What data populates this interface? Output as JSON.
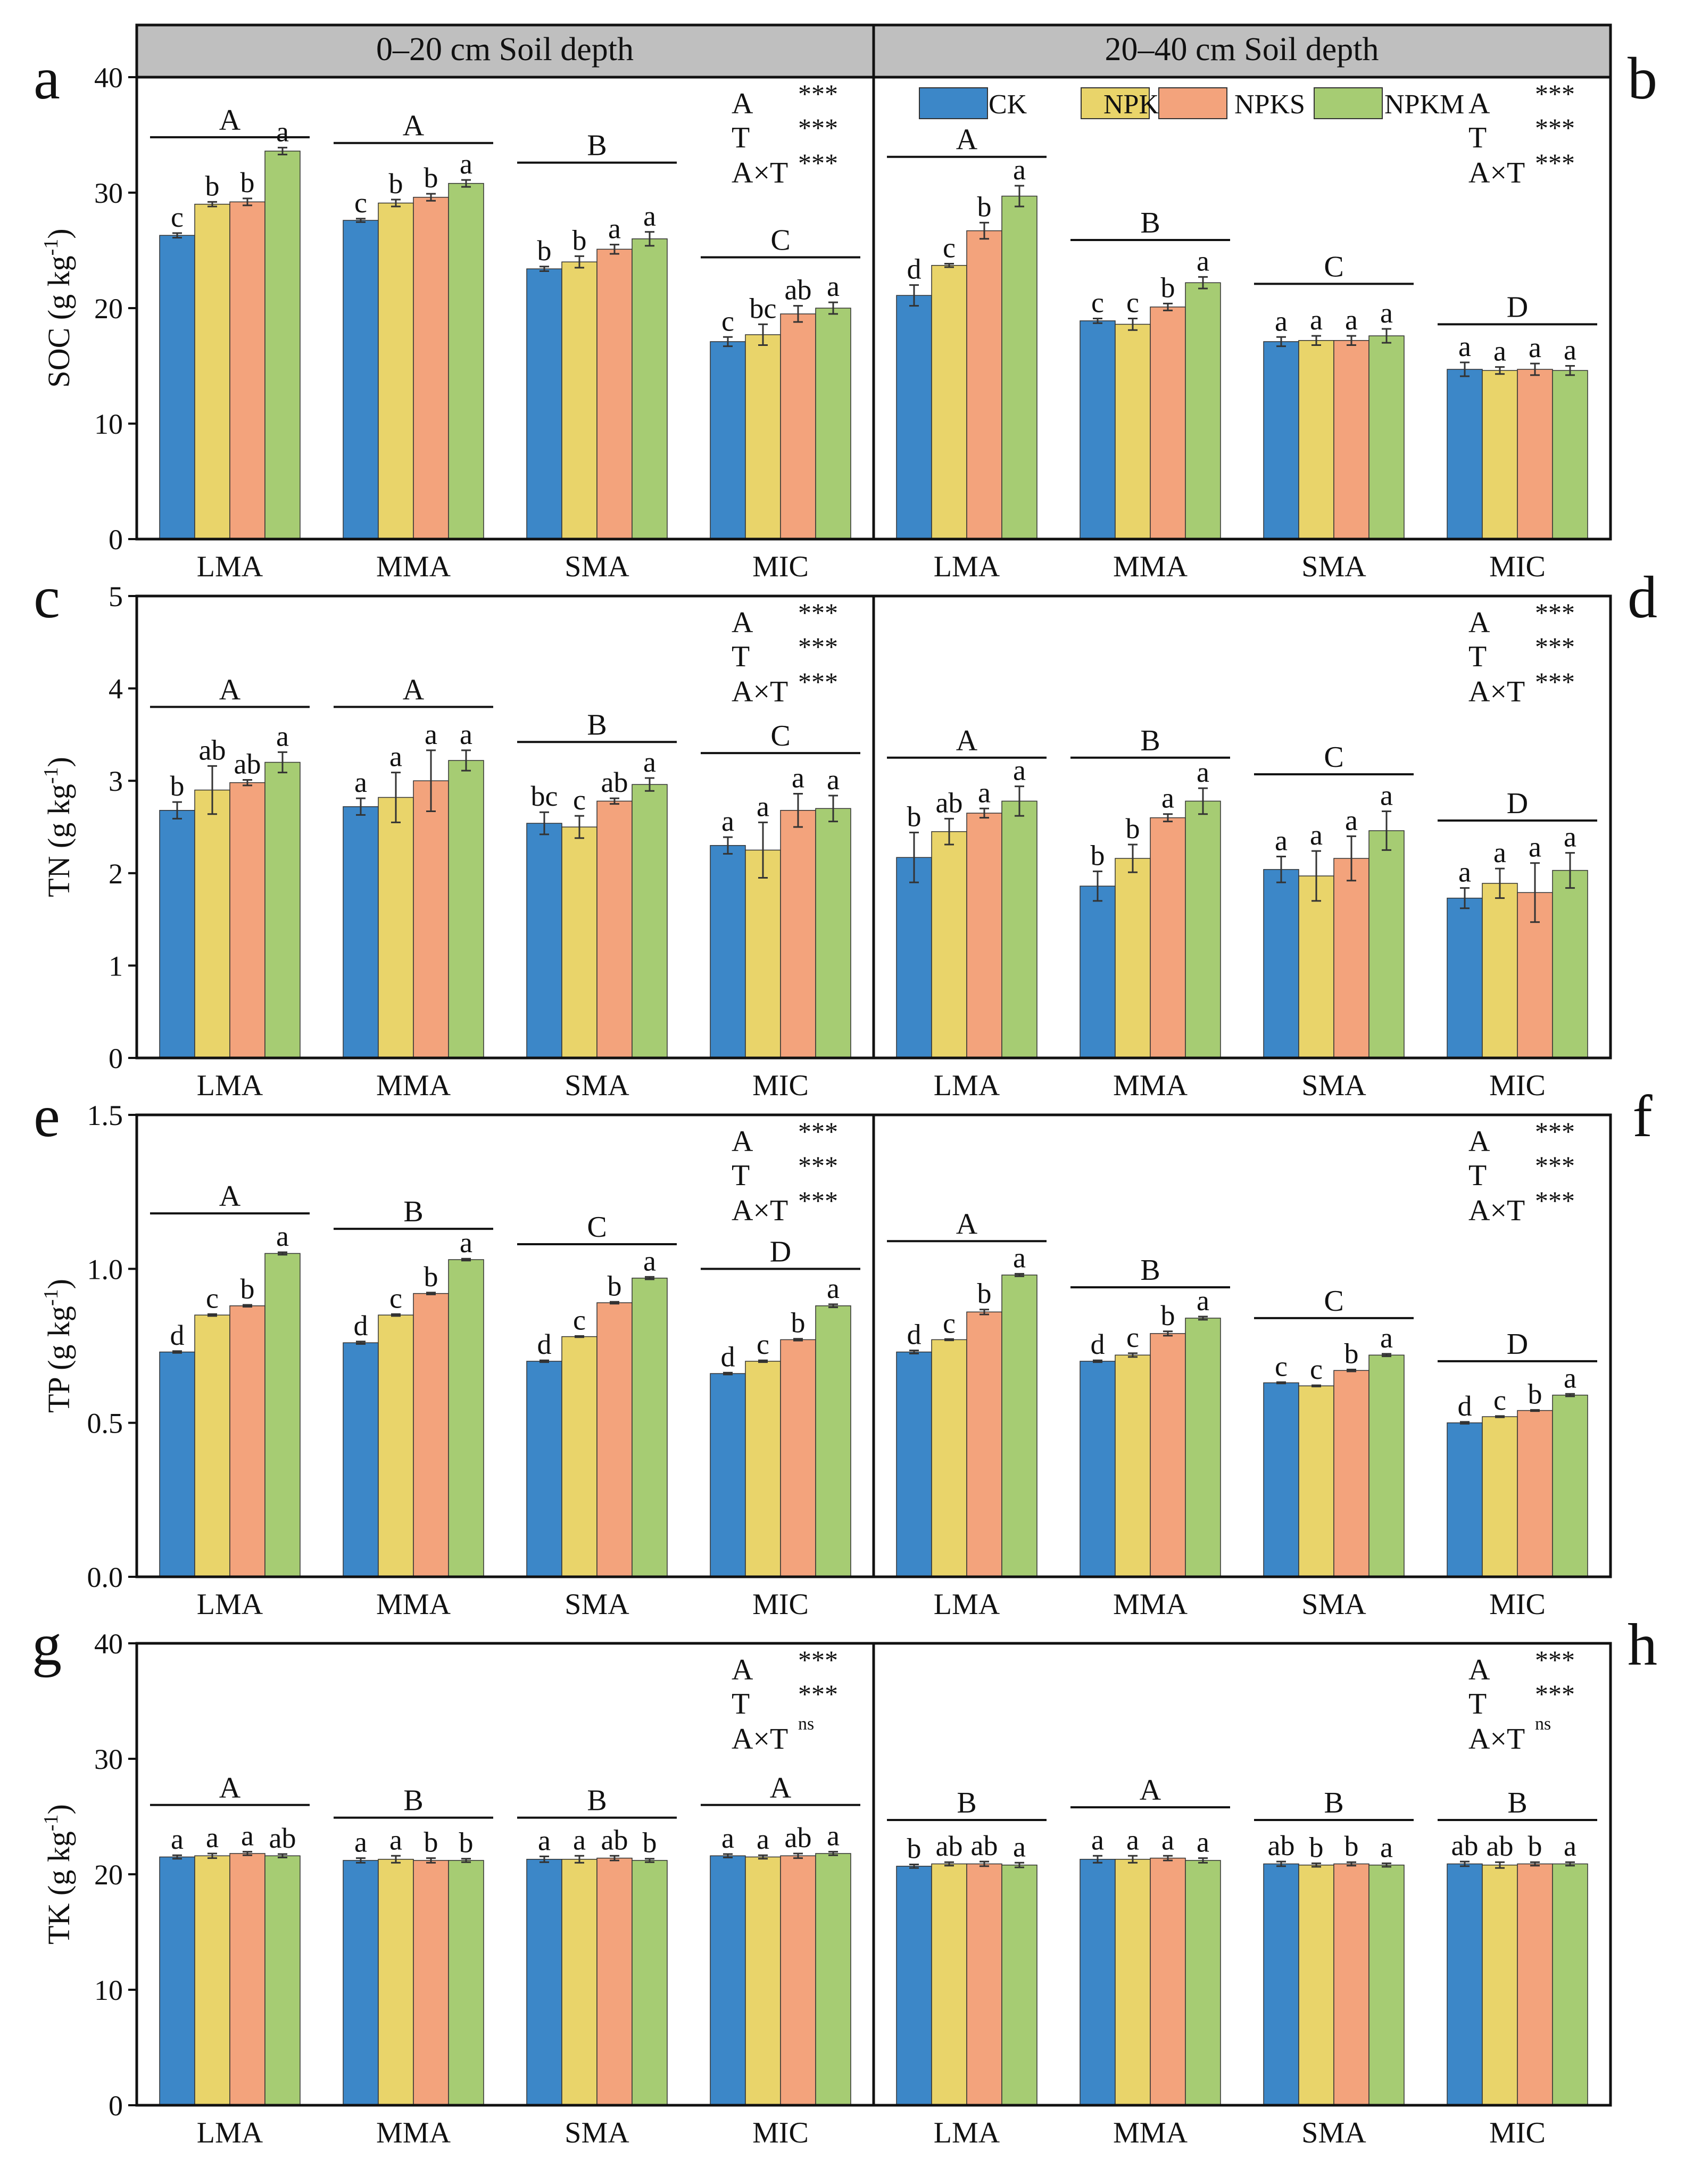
{
  "figure": {
    "header_left": "0–20 cm Soil depth",
    "header_right": "20–40 cm Soil depth",
    "colors": {
      "CK": "#3c87c8",
      "NPK": "#e9d46a",
      "NPKS": "#f3a37c",
      "NPKM": "#a6cc73",
      "header": "#bfbfbf"
    }
  },
  "chart_data": [
    {
      "type": "bar",
      "panels": [
        "a",
        "b"
      ],
      "ylabel": "SOC (g kg",
      "ylabel_sup": "-1",
      "ylabel_close": ")",
      "ylim": [
        0,
        40
      ],
      "yticks": [
        0,
        10,
        20,
        30,
        40
      ],
      "ytick_labels": [
        "0",
        "10",
        "20",
        "30",
        "40"
      ],
      "categories": [
        "LMA",
        "MMA",
        "SMA",
        "MIC"
      ],
      "series_names": [
        "CK",
        "NPK",
        "NPKS",
        "NPKM"
      ],
      "legend": [
        "CK",
        "NPK",
        "NPKS",
        "NPKM"
      ],
      "depths": [
        {
          "values": [
            [
              26.3,
              29.0,
              29.2,
              33.6
            ],
            [
              27.6,
              29.1,
              29.6,
              30.8
            ],
            [
              23.4,
              24.0,
              25.1,
              26.0
            ],
            [
              17.1,
              17.7,
              19.5,
              20.0
            ]
          ],
          "errors": [
            [
              0.2,
              0.2,
              0.3,
              0.3
            ],
            [
              0.15,
              0.3,
              0.3,
              0.3
            ],
            [
              0.2,
              0.5,
              0.4,
              0.6
            ],
            [
              0.4,
              0.9,
              0.7,
              0.5
            ]
          ],
          "letters": [
            [
              "c",
              "b",
              "b",
              "a"
            ],
            [
              "c",
              "b",
              "b",
              "a"
            ],
            [
              "b",
              "b",
              "a",
              "a"
            ],
            [
              "c",
              "bc",
              "ab",
              "a"
            ]
          ],
          "group_letters": [
            "A",
            "A",
            "B",
            "C"
          ],
          "group_line": [
            34.8,
            34.3,
            32.6,
            24.4
          ],
          "stats": [
            "A",
            "***",
            "T",
            "***",
            "A×T",
            "***"
          ]
        },
        {
          "values": [
            [
              21.1,
              23.7,
              26.7,
              29.7
            ],
            [
              18.9,
              18.6,
              20.1,
              22.2
            ],
            [
              17.1,
              17.2,
              17.2,
              17.6
            ],
            [
              14.7,
              14.6,
              14.7,
              14.6
            ]
          ],
          "errors": [
            [
              0.9,
              0.15,
              0.7,
              0.9
            ],
            [
              0.2,
              0.5,
              0.3,
              0.5
            ],
            [
              0.4,
              0.4,
              0.4,
              0.6
            ],
            [
              0.6,
              0.3,
              0.5,
              0.4
            ]
          ],
          "letters": [
            [
              "d",
              "c",
              "b",
              "a"
            ],
            [
              "c",
              "c",
              "b",
              "a"
            ],
            [
              "a",
              "a",
              "a",
              "a"
            ],
            [
              "a",
              "a",
              "a",
              "a"
            ]
          ],
          "group_letters": [
            "A",
            "B",
            "C",
            "D"
          ],
          "group_line": [
            33.1,
            25.9,
            22.1,
            18.6
          ],
          "stats": [
            "A",
            "***",
            "T",
            "***",
            "A×T",
            "***"
          ]
        }
      ]
    },
    {
      "type": "bar",
      "panels": [
        "c",
        "d"
      ],
      "ylabel": "TN (g kg",
      "ylabel_sup": "-1",
      "ylabel_close": ")",
      "ylim": [
        0,
        5
      ],
      "yticks": [
        0,
        1,
        2,
        3,
        4,
        5
      ],
      "ytick_labels": [
        "0",
        "1",
        "2",
        "3",
        "4",
        "5"
      ],
      "categories": [
        "LMA",
        "MMA",
        "SMA",
        "MIC"
      ],
      "series_names": [
        "CK",
        "NPK",
        "NPKS",
        "NPKM"
      ],
      "depths": [
        {
          "values": [
            [
              2.68,
              2.9,
              2.98,
              3.2
            ],
            [
              2.72,
              2.82,
              3.0,
              3.22
            ],
            [
              2.54,
              2.5,
              2.78,
              2.96
            ],
            [
              2.3,
              2.25,
              2.68,
              2.7
            ]
          ],
          "errors": [
            [
              0.09,
              0.26,
              0.03,
              0.11
            ],
            [
              0.09,
              0.27,
              0.33,
              0.11
            ],
            [
              0.12,
              0.12,
              0.03,
              0.07
            ],
            [
              0.09,
              0.3,
              0.18,
              0.14
            ]
          ],
          "letters": [
            [
              "b",
              "ab",
              "ab",
              "a"
            ],
            [
              "a",
              "a",
              "a",
              "a"
            ],
            [
              "bc",
              "c",
              "ab",
              "a"
            ],
            [
              "a",
              "a",
              "a",
              "a"
            ]
          ],
          "group_letters": [
            "A",
            "A",
            "B",
            "C"
          ],
          "group_line": [
            3.8,
            3.8,
            3.42,
            3.3
          ],
          "stats": [
            "A",
            "***",
            "T",
            "***",
            "A×T",
            "***"
          ]
        },
        {
          "values": [
            [
              2.17,
              2.45,
              2.65,
              2.78
            ],
            [
              1.86,
              2.16,
              2.6,
              2.78
            ],
            [
              2.04,
              1.97,
              2.16,
              2.46
            ],
            [
              1.73,
              1.89,
              1.79,
              2.03
            ]
          ],
          "errors": [
            [
              0.27,
              0.14,
              0.05,
              0.16
            ],
            [
              0.16,
              0.15,
              0.04,
              0.14
            ],
            [
              0.14,
              0.27,
              0.24,
              0.21
            ],
            [
              0.11,
              0.16,
              0.32,
              0.19
            ]
          ],
          "letters": [
            [
              "b",
              "ab",
              "a",
              "a"
            ],
            [
              "b",
              "b",
              "a",
              "a"
            ],
            [
              "a",
              "a",
              "a",
              "a"
            ],
            [
              "a",
              "a",
              "a",
              "a"
            ]
          ],
          "group_letters": [
            "A",
            "B",
            "C",
            "D"
          ],
          "group_line": [
            3.25,
            3.25,
            3.07,
            2.57
          ],
          "stats": [
            "A",
            "***",
            "T",
            "***",
            "A×T",
            "***"
          ]
        }
      ]
    },
    {
      "type": "bar",
      "panels": [
        "e",
        "f"
      ],
      "ylabel": "TP (g kg",
      "ylabel_sup": "-1",
      "ylabel_close": ")",
      "ylim": [
        0,
        1.5
      ],
      "yticks": [
        0,
        0.5,
        1.0,
        1.5
      ],
      "ytick_labels": [
        "0.0",
        "0.5",
        "1.0",
        "1.5"
      ],
      "categories": [
        "LMA",
        "MMA",
        "SMA",
        "MIC"
      ],
      "series_names": [
        "CK",
        "NPK",
        "NPKS",
        "NPKM"
      ],
      "depths": [
        {
          "values": [
            [
              0.73,
              0.85,
              0.88,
              1.05
            ],
            [
              0.76,
              0.85,
              0.92,
              1.03
            ],
            [
              0.7,
              0.78,
              0.89,
              0.97
            ],
            [
              0.66,
              0.7,
              0.77,
              0.88
            ]
          ],
          "errors": [
            [
              0.003,
              0.003,
              0.003,
              0.004
            ],
            [
              0.004,
              0.003,
              0.003,
              0.003
            ],
            [
              0.003,
              0.002,
              0.003,
              0.004
            ],
            [
              0.003,
              0.003,
              0.003,
              0.005
            ]
          ],
          "letters": [
            [
              "d",
              "c",
              "b",
              "a"
            ],
            [
              "d",
              "c",
              "b",
              "a"
            ],
            [
              "d",
              "c",
              "b",
              "a"
            ],
            [
              "d",
              "c",
              "b",
              "a"
            ]
          ],
          "group_letters": [
            "A",
            "B",
            "C",
            "D"
          ],
          "group_line": [
            1.18,
            1.13,
            1.08,
            1.0
          ],
          "stats": [
            "A",
            "***",
            "T",
            "***",
            "A×T",
            "***"
          ]
        },
        {
          "values": [
            [
              0.73,
              0.77,
              0.86,
              0.98
            ],
            [
              0.7,
              0.72,
              0.79,
              0.84
            ],
            [
              0.63,
              0.62,
              0.67,
              0.72
            ],
            [
              0.5,
              0.52,
              0.54,
              0.59
            ]
          ],
          "errors": [
            [
              0.005,
              0.002,
              0.008,
              0.004
            ],
            [
              0.003,
              0.006,
              0.007,
              0.005
            ],
            [
              0.002,
              0.002,
              0.003,
              0.004
            ],
            [
              0.003,
              0.002,
              0.002,
              0.004
            ]
          ],
          "letters": [
            [
              "d",
              "c",
              "b",
              "a"
            ],
            [
              "d",
              "c",
              "b",
              "a"
            ],
            [
              "c",
              "c",
              "b",
              "a"
            ],
            [
              "d",
              "c",
              "b",
              "a"
            ]
          ],
          "group_letters": [
            "A",
            "B",
            "C",
            "D"
          ],
          "group_line": [
            1.09,
            0.94,
            0.84,
            0.7
          ],
          "stats": [
            "A",
            "***",
            "T",
            "***",
            "A×T",
            "***"
          ]
        }
      ]
    },
    {
      "type": "bar",
      "panels": [
        "g",
        "h"
      ],
      "ylabel": "TK (g kg",
      "ylabel_sup": "-1",
      "ylabel_close": ")",
      "ylim": [
        0,
        40
      ],
      "yticks": [
        0,
        10,
        20,
        30,
        40
      ],
      "ytick_labels": [
        "0",
        "10",
        "20",
        "30",
        "40"
      ],
      "categories": [
        "LMA",
        "MMA",
        "SMA",
        "MIC"
      ],
      "series_names": [
        "CK",
        "NPK",
        "NPKS",
        "NPKM"
      ],
      "depths": [
        {
          "values": [
            [
              21.5,
              21.6,
              21.8,
              21.6
            ],
            [
              21.2,
              21.3,
              21.2,
              21.2
            ],
            [
              21.3,
              21.3,
              21.4,
              21.2
            ],
            [
              21.6,
              21.5,
              21.6,
              21.8
            ]
          ],
          "errors": [
            [
              0.15,
              0.2,
              0.15,
              0.15
            ],
            [
              0.2,
              0.3,
              0.2,
              0.15
            ],
            [
              0.25,
              0.3,
              0.2,
              0.15
            ],
            [
              0.15,
              0.15,
              0.2,
              0.15
            ]
          ],
          "letters": [
            [
              "a",
              "a",
              "a",
              "ab"
            ],
            [
              "a",
              "a",
              "b",
              "b"
            ],
            [
              "a",
              "a",
              "ab",
              "b"
            ],
            [
              "a",
              "a",
              "ab",
              "a"
            ]
          ],
          "group_letters": [
            "A",
            "B",
            "B",
            "A"
          ],
          "group_line": [
            26.0,
            24.9,
            24.9,
            26.0
          ],
          "stats": [
            "A",
            "***",
            "T",
            "***",
            "A×T",
            "ns"
          ]
        },
        {
          "values": [
            [
              20.7,
              20.9,
              20.9,
              20.8
            ],
            [
              21.3,
              21.3,
              21.4,
              21.2
            ],
            [
              20.9,
              20.8,
              20.9,
              20.8
            ],
            [
              20.9,
              20.8,
              20.9,
              20.9
            ]
          ],
          "errors": [
            [
              0.15,
              0.15,
              0.2,
              0.2
            ],
            [
              0.3,
              0.3,
              0.2,
              0.2
            ],
            [
              0.2,
              0.15,
              0.15,
              0.15
            ],
            [
              0.2,
              0.25,
              0.15,
              0.15
            ]
          ],
          "letters": [
            [
              "b",
              "ab",
              "ab",
              "a"
            ],
            [
              "a",
              "a",
              "a",
              "a"
            ],
            [
              "ab",
              "b",
              "b",
              "a"
            ],
            [
              "ab",
              "ab",
              "b",
              "a"
            ]
          ],
          "group_letters": [
            "B",
            "A",
            "B",
            "B"
          ],
          "group_line": [
            24.7,
            25.8,
            24.7,
            24.7
          ],
          "stats": [
            "A",
            "***",
            "T",
            "***",
            "A×T",
            "ns"
          ]
        }
      ]
    }
  ]
}
